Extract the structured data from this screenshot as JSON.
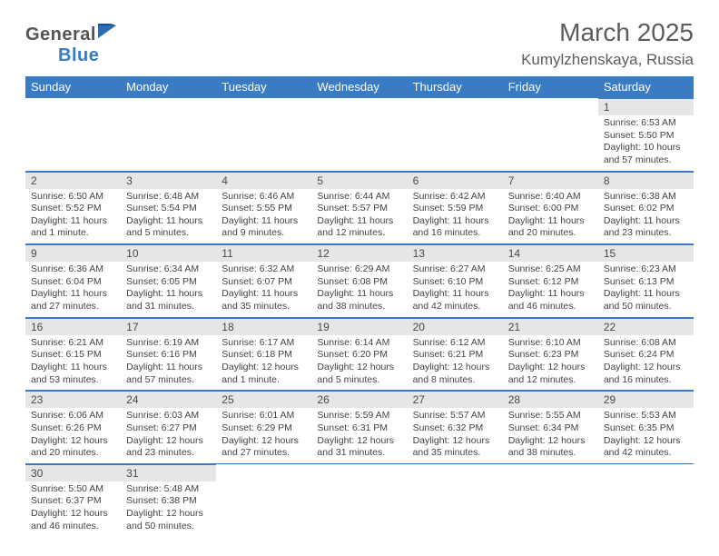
{
  "header": {
    "logo_general": "General",
    "logo_blue": "Blue",
    "month_title": "March 2025",
    "location": "Kumylzhenskaya, Russia"
  },
  "calendar": {
    "day_headers": [
      "Sunday",
      "Monday",
      "Tuesday",
      "Wednesday",
      "Thursday",
      "Friday",
      "Saturday"
    ],
    "weeks": [
      [
        null,
        null,
        null,
        null,
        null,
        null,
        {
          "num": "1",
          "sunrise": "Sunrise: 6:53 AM",
          "sunset": "Sunset: 5:50 PM",
          "daylight": "Daylight: 10 hours and 57 minutes."
        }
      ],
      [
        {
          "num": "2",
          "sunrise": "Sunrise: 6:50 AM",
          "sunset": "Sunset: 5:52 PM",
          "daylight": "Daylight: 11 hours and 1 minute."
        },
        {
          "num": "3",
          "sunrise": "Sunrise: 6:48 AM",
          "sunset": "Sunset: 5:54 PM",
          "daylight": "Daylight: 11 hours and 5 minutes."
        },
        {
          "num": "4",
          "sunrise": "Sunrise: 6:46 AM",
          "sunset": "Sunset: 5:55 PM",
          "daylight": "Daylight: 11 hours and 9 minutes."
        },
        {
          "num": "5",
          "sunrise": "Sunrise: 6:44 AM",
          "sunset": "Sunset: 5:57 PM",
          "daylight": "Daylight: 11 hours and 12 minutes."
        },
        {
          "num": "6",
          "sunrise": "Sunrise: 6:42 AM",
          "sunset": "Sunset: 5:59 PM",
          "daylight": "Daylight: 11 hours and 16 minutes."
        },
        {
          "num": "7",
          "sunrise": "Sunrise: 6:40 AM",
          "sunset": "Sunset: 6:00 PM",
          "daylight": "Daylight: 11 hours and 20 minutes."
        },
        {
          "num": "8",
          "sunrise": "Sunrise: 6:38 AM",
          "sunset": "Sunset: 6:02 PM",
          "daylight": "Daylight: 11 hours and 23 minutes."
        }
      ],
      [
        {
          "num": "9",
          "sunrise": "Sunrise: 6:36 AM",
          "sunset": "Sunset: 6:04 PM",
          "daylight": "Daylight: 11 hours and 27 minutes."
        },
        {
          "num": "10",
          "sunrise": "Sunrise: 6:34 AM",
          "sunset": "Sunset: 6:05 PM",
          "daylight": "Daylight: 11 hours and 31 minutes."
        },
        {
          "num": "11",
          "sunrise": "Sunrise: 6:32 AM",
          "sunset": "Sunset: 6:07 PM",
          "daylight": "Daylight: 11 hours and 35 minutes."
        },
        {
          "num": "12",
          "sunrise": "Sunrise: 6:29 AM",
          "sunset": "Sunset: 6:08 PM",
          "daylight": "Daylight: 11 hours and 38 minutes."
        },
        {
          "num": "13",
          "sunrise": "Sunrise: 6:27 AM",
          "sunset": "Sunset: 6:10 PM",
          "daylight": "Daylight: 11 hours and 42 minutes."
        },
        {
          "num": "14",
          "sunrise": "Sunrise: 6:25 AM",
          "sunset": "Sunset: 6:12 PM",
          "daylight": "Daylight: 11 hours and 46 minutes."
        },
        {
          "num": "15",
          "sunrise": "Sunrise: 6:23 AM",
          "sunset": "Sunset: 6:13 PM",
          "daylight": "Daylight: 11 hours and 50 minutes."
        }
      ],
      [
        {
          "num": "16",
          "sunrise": "Sunrise: 6:21 AM",
          "sunset": "Sunset: 6:15 PM",
          "daylight": "Daylight: 11 hours and 53 minutes."
        },
        {
          "num": "17",
          "sunrise": "Sunrise: 6:19 AM",
          "sunset": "Sunset: 6:16 PM",
          "daylight": "Daylight: 11 hours and 57 minutes."
        },
        {
          "num": "18",
          "sunrise": "Sunrise: 6:17 AM",
          "sunset": "Sunset: 6:18 PM",
          "daylight": "Daylight: 12 hours and 1 minute."
        },
        {
          "num": "19",
          "sunrise": "Sunrise: 6:14 AM",
          "sunset": "Sunset: 6:20 PM",
          "daylight": "Daylight: 12 hours and 5 minutes."
        },
        {
          "num": "20",
          "sunrise": "Sunrise: 6:12 AM",
          "sunset": "Sunset: 6:21 PM",
          "daylight": "Daylight: 12 hours and 8 minutes."
        },
        {
          "num": "21",
          "sunrise": "Sunrise: 6:10 AM",
          "sunset": "Sunset: 6:23 PM",
          "daylight": "Daylight: 12 hours and 12 minutes."
        },
        {
          "num": "22",
          "sunrise": "Sunrise: 6:08 AM",
          "sunset": "Sunset: 6:24 PM",
          "daylight": "Daylight: 12 hours and 16 minutes."
        }
      ],
      [
        {
          "num": "23",
          "sunrise": "Sunrise: 6:06 AM",
          "sunset": "Sunset: 6:26 PM",
          "daylight": "Daylight: 12 hours and 20 minutes."
        },
        {
          "num": "24",
          "sunrise": "Sunrise: 6:03 AM",
          "sunset": "Sunset: 6:27 PM",
          "daylight": "Daylight: 12 hours and 23 minutes."
        },
        {
          "num": "25",
          "sunrise": "Sunrise: 6:01 AM",
          "sunset": "Sunset: 6:29 PM",
          "daylight": "Daylight: 12 hours and 27 minutes."
        },
        {
          "num": "26",
          "sunrise": "Sunrise: 5:59 AM",
          "sunset": "Sunset: 6:31 PM",
          "daylight": "Daylight: 12 hours and 31 minutes."
        },
        {
          "num": "27",
          "sunrise": "Sunrise: 5:57 AM",
          "sunset": "Sunset: 6:32 PM",
          "daylight": "Daylight: 12 hours and 35 minutes."
        },
        {
          "num": "28",
          "sunrise": "Sunrise: 5:55 AM",
          "sunset": "Sunset: 6:34 PM",
          "daylight": "Daylight: 12 hours and 38 minutes."
        },
        {
          "num": "29",
          "sunrise": "Sunrise: 5:53 AM",
          "sunset": "Sunset: 6:35 PM",
          "daylight": "Daylight: 12 hours and 42 minutes."
        }
      ],
      [
        {
          "num": "30",
          "sunrise": "Sunrise: 5:50 AM",
          "sunset": "Sunset: 6:37 PM",
          "daylight": "Daylight: 12 hours and 46 minutes."
        },
        {
          "num": "31",
          "sunrise": "Sunrise: 5:48 AM",
          "sunset": "Sunset: 6:38 PM",
          "daylight": "Daylight: 12 hours and 50 minutes."
        },
        null,
        null,
        null,
        null,
        null
      ]
    ]
  },
  "style": {
    "header_bg": "#3a7cc4",
    "header_fg": "#ffffff",
    "daynum_bg": "#e6e6e6",
    "border_color": "#3a7cc4",
    "body_font_size": 10.5,
    "daynum_font_size": 12,
    "th_font_size": 13,
    "month_title_font_size": 28,
    "location_font_size": 17
  }
}
